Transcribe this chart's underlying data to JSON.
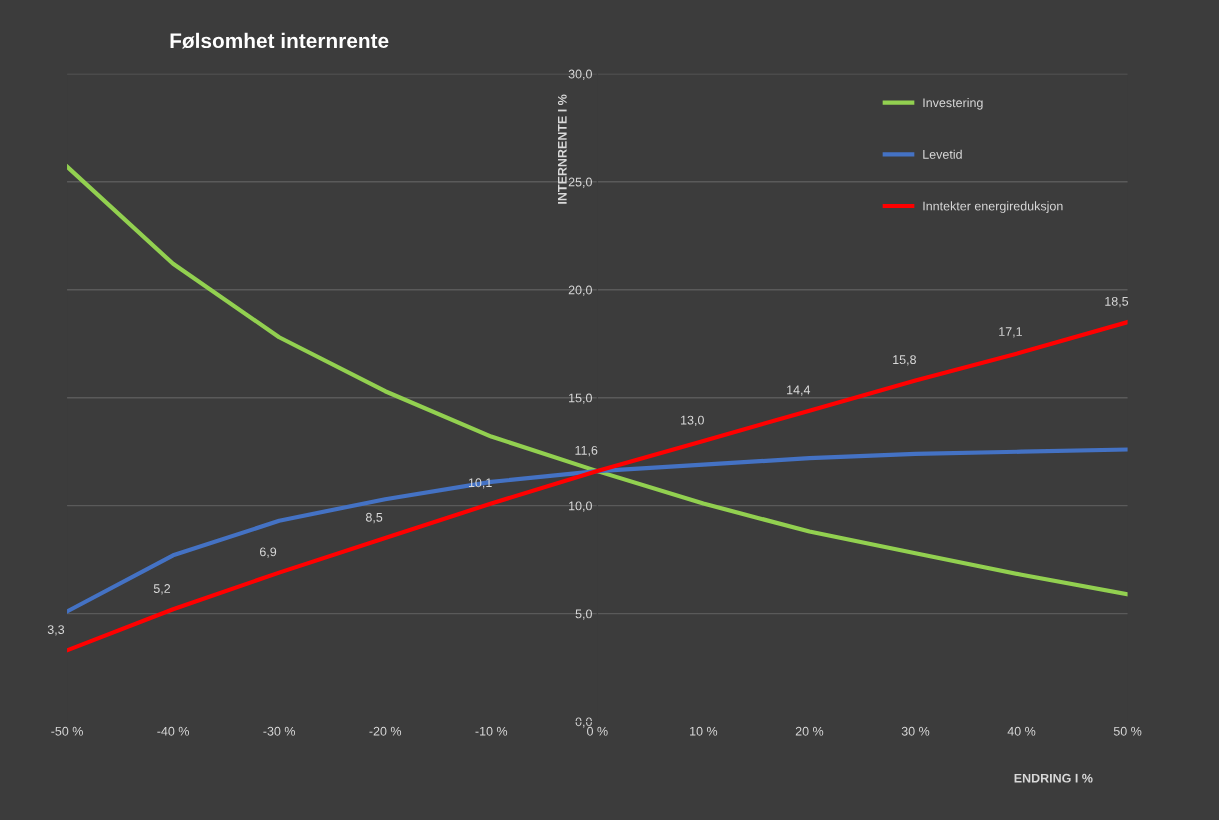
{
  "chart_data": {
    "type": "line",
    "title": "Følsomhet internrente",
    "xlabel": "ENDRING I %",
    "ylabel": "INTERNRENTE I %",
    "x": [
      -50,
      -40,
      -30,
      -20,
      -10,
      0,
      10,
      20,
      30,
      40,
      50
    ],
    "series": [
      {
        "name": "Investering",
        "color": "#92d050",
        "values": [
          25.7,
          21.2,
          17.8,
          15.3,
          13.2,
          11.6,
          10.1,
          8.8,
          7.8,
          6.8,
          5.9
        ]
      },
      {
        "name": "Levetid",
        "color": "#4472c4",
        "values": [
          5.1,
          7.7,
          9.3,
          10.3,
          11.1,
          11.6,
          11.9,
          12.2,
          12.4,
          12.5,
          12.6
        ]
      },
      {
        "name": "Inntekter energireduksjon",
        "color": "#ff0000",
        "values": [
          3.3,
          5.2,
          6.9,
          8.5,
          10.1,
          11.6,
          13.0,
          14.4,
          15.8,
          17.1,
          18.5
        ],
        "value_labels": [
          "3,3",
          "5,2",
          "6,9",
          "8,5",
          "10,1",
          "11,6",
          "13,0",
          "14,4",
          "15,8",
          "17,1",
          "18,5"
        ]
      }
    ],
    "xlim": [
      -50,
      50
    ],
    "xticks": [
      {
        "value": -50,
        "label": "-50 %"
      },
      {
        "value": -40,
        "label": "-40 %"
      },
      {
        "value": -30,
        "label": "-30 %"
      },
      {
        "value": -20,
        "label": "-20 %"
      },
      {
        "value": -10,
        "label": "-10 %"
      },
      {
        "value": 0,
        "label": "0 %"
      },
      {
        "value": 10,
        "label": "10 %"
      },
      {
        "value": 20,
        "label": "20 %"
      },
      {
        "value": 30,
        "label": "30 %"
      },
      {
        "value": 40,
        "label": "40 %"
      },
      {
        "value": 50,
        "label": "50 %"
      }
    ],
    "ylim": [
      0,
      30
    ],
    "yticks": [
      {
        "value": 0,
        "label": "0,0"
      },
      {
        "value": 5,
        "label": "5,0"
      },
      {
        "value": 10,
        "label": "10,0"
      },
      {
        "value": 15,
        "label": "15,0"
      },
      {
        "value": 20,
        "label": "20,0"
      },
      {
        "value": 25,
        "label": "25,0"
      },
      {
        "value": 30,
        "label": "30,0"
      }
    ],
    "grid": "y",
    "legend": "top right",
    "marker": "none",
    "line_style": "solid"
  }
}
